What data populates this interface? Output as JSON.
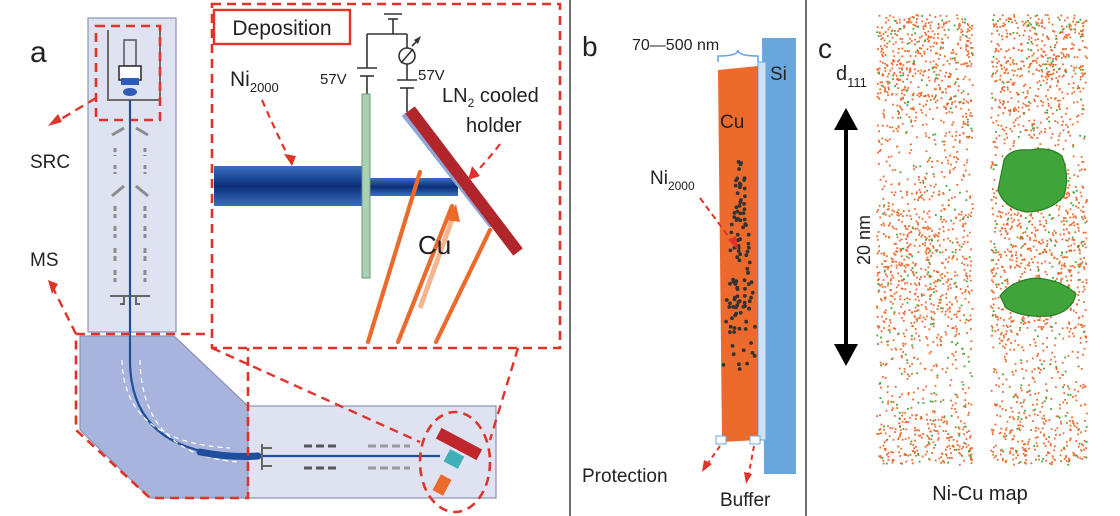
{
  "panel_a": {
    "label": "a",
    "deposition_title": "Deposition",
    "voltage_left": "57V",
    "voltage_right": "57V",
    "beam_label_main": "Ni",
    "beam_label_sub": "2000",
    "holder_label_line1_a": "LN",
    "holder_label_line1_sub": "2",
    "holder_label_line1_b": " cooled",
    "holder_label_line2": "holder",
    "target_label": "Cu",
    "src_label": "SRC",
    "ms_label": "MS"
  },
  "panel_b": {
    "label": "b",
    "thickness_label": "70—500 nm",
    "substrate_label": "Si",
    "film_label": "Cu",
    "cluster_label_main": "Ni",
    "cluster_label_sub": "2000",
    "protection_label": "Protection",
    "buffer_label": "Buffer"
  },
  "panel_c": {
    "label": "c",
    "d_label_main": "d",
    "d_label_sub": "111",
    "scale_label": "20 nm",
    "caption": "Ni-Cu map"
  },
  "colors": {
    "dashed_red": "#e0342a",
    "beam_blue": "#1f4f9a",
    "copper_orange": "#ec6a2c",
    "silicon_blue": "#6aa6de",
    "panel_fill": "#dfe2f1",
    "ni_green": "#3ba836"
  }
}
